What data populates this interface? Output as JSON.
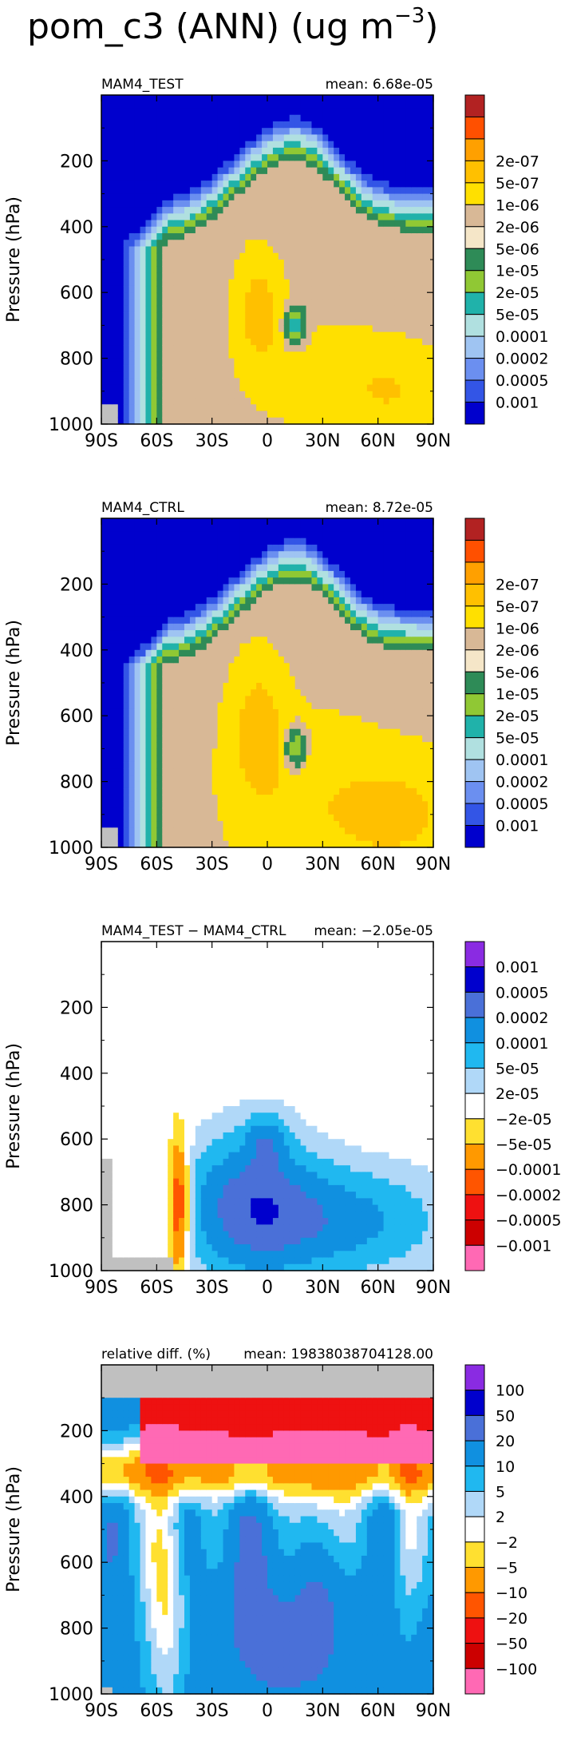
{
  "figure": {
    "title": "pom_c3 (ANN) (ug m",
    "title_sup": "−3",
    "title_close": ")"
  },
  "chart_data": [
    {
      "type": "heatmap",
      "panel_label": "MAM4_TEST",
      "mean_label": "mean: 6.68e-05",
      "ylabel": "Pressure (hPa)",
      "xlabel": "",
      "x_ticks": [
        "90S",
        "60S",
        "30S",
        "0",
        "30N",
        "60N",
        "90N"
      ],
      "y_ticks": [
        "200",
        "400",
        "600",
        "800",
        "1000"
      ],
      "xlim": [
        -90,
        90
      ],
      "ylim": [
        1000,
        0
      ],
      "levels": [
        "2e-07",
        "5e-07",
        "1e-06",
        "2e-06",
        "5e-06",
        "1e-05",
        "2e-05",
        "5e-05",
        "0.0001",
        "0.0002",
        "0.0005",
        "0.001"
      ],
      "colors": [
        "#0000cd",
        "#3355e6",
        "#6b8ff0",
        "#9fc4f2",
        "#b0e0e0",
        "#20b2aa",
        "#90c834",
        "#2e8b57",
        "#f5e6c8",
        "#d8b896",
        "#ffe000",
        "#ffc000",
        "#ffa000",
        "#ff5000",
        "#b22222"
      ]
    },
    {
      "type": "heatmap",
      "panel_label": "MAM4_CTRL",
      "mean_label": "mean: 8.72e-05",
      "ylabel": "Pressure (hPa)",
      "xlabel": "",
      "x_ticks": [
        "90S",
        "60S",
        "30S",
        "0",
        "30N",
        "60N",
        "90N"
      ],
      "y_ticks": [
        "200",
        "400",
        "600",
        "800",
        "1000"
      ],
      "xlim": [
        -90,
        90
      ],
      "ylim": [
        1000,
        0
      ],
      "levels": [
        "2e-07",
        "5e-07",
        "1e-06",
        "2e-06",
        "5e-06",
        "1e-05",
        "2e-05",
        "5e-05",
        "0.0001",
        "0.0002",
        "0.0005",
        "0.001"
      ],
      "colors": [
        "#0000cd",
        "#3355e6",
        "#6b8ff0",
        "#9fc4f2",
        "#b0e0e0",
        "#20b2aa",
        "#90c834",
        "#2e8b57",
        "#f5e6c8",
        "#d8b896",
        "#ffe000",
        "#ffc000",
        "#ffa000",
        "#ff5000",
        "#b22222"
      ]
    },
    {
      "type": "heatmap",
      "panel_label": "MAM4_TEST − MAM4_CTRL",
      "mean_label": "mean: −2.05e-05",
      "ylabel": "Pressure (hPa)",
      "xlabel": "",
      "x_ticks": [
        "90S",
        "60S",
        "30S",
        "0",
        "30N",
        "60N",
        "90N"
      ],
      "y_ticks": [
        "200",
        "400",
        "600",
        "800",
        "1000"
      ],
      "xlim": [
        -90,
        90
      ],
      "ylim": [
        1000,
        0
      ],
      "levels": [
        "0.001",
        "0.0005",
        "0.0002",
        "0.0001",
        "5e-05",
        "2e-05",
        "−2e-05",
        "−5e-05",
        "−0.0001",
        "−0.0002",
        "−0.0005",
        "−0.001"
      ],
      "colors": [
        "#ff69b4",
        "#cc0000",
        "#ee1111",
        "#ff5500",
        "#ff9900",
        "#ffe030",
        "#ffffff",
        "#b0d8f8",
        "#20b8f0",
        "#1090e0",
        "#4a70d8",
        "#0000cd",
        "#8a2be2"
      ]
    },
    {
      "type": "heatmap",
      "panel_label": "relative diff. (%)",
      "mean_label": "mean: 19838038704128.00",
      "ylabel": "Pressure (hPa)",
      "xlabel": "",
      "x_ticks": [
        "90S",
        "60S",
        "30S",
        "0",
        "30N",
        "60N",
        "90N"
      ],
      "y_ticks": [
        "200",
        "400",
        "600",
        "800",
        "1000"
      ],
      "xlim": [
        -90,
        90
      ],
      "ylim": [
        1000,
        0
      ],
      "levels": [
        "100",
        "50",
        "20",
        "10",
        "5",
        "2",
        "−2",
        "−5",
        "−10",
        "−20",
        "−50",
        "−100"
      ],
      "colors": [
        "#ff69b4",
        "#cc0000",
        "#ee1111",
        "#ff5500",
        "#ff9900",
        "#ffe030",
        "#ffffff",
        "#b0d8f8",
        "#20b8f0",
        "#1090e0",
        "#4a70d8",
        "#0000cd",
        "#8a2be2"
      ]
    }
  ]
}
